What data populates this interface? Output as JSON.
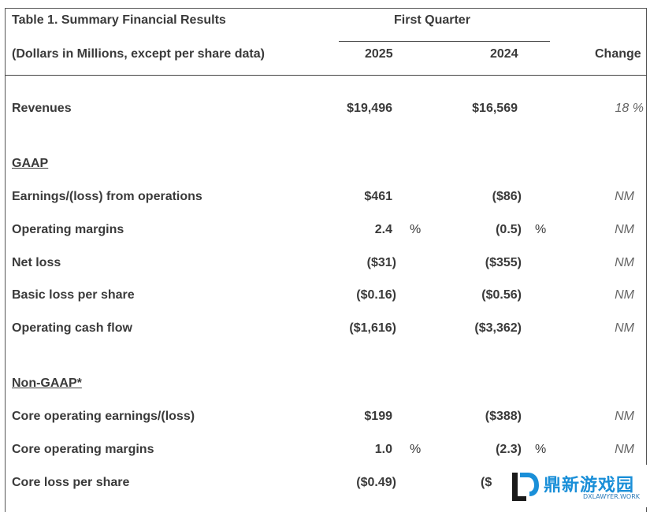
{
  "table": {
    "title": "Table 1. Summary Financial Results",
    "subtitle": "(Dollars in Millions, except per share data)",
    "group_header": "First Quarter",
    "col_2025": "2025",
    "col_2024": "2024",
    "col_change": "Change",
    "rows": [
      {
        "label": "Revenues",
        "v2025": "$19,496",
        "v2024": "$16,569",
        "change": "18 %"
      },
      {
        "label": "GAAP"
      },
      {
        "label": "Earnings/(loss) from operations",
        "v2025": "$461",
        "v2024": "($86)",
        "change": "NM"
      },
      {
        "label": "Operating margins",
        "v2025": "2.4",
        "p2025": "%",
        "v2024": "(0.5)",
        "p2024": "%",
        "change": "NM"
      },
      {
        "label": "Net loss",
        "v2025": "($31)",
        "v2024": "($355)",
        "change": "NM"
      },
      {
        "label": "Basic loss per share",
        "v2025": "($0.16)",
        "v2024": "($0.56)",
        "change": "NM"
      },
      {
        "label": "Operating cash flow",
        "v2025": "($1,616)",
        "v2024": "($3,362)",
        "change": "NM"
      },
      {
        "label": "Non-GAAP*"
      },
      {
        "label": "Core operating earnings/(loss)",
        "v2025": "$199",
        "v2024": "($388)",
        "change": "NM"
      },
      {
        "label": "Core operating margins",
        "v2025": "1.0",
        "p2025": "%",
        "v2024": "(2.3)",
        "p2024": "%",
        "change": "NM"
      },
      {
        "label": "Core loss per share",
        "v2025": "($0.49)",
        "v2024": "($"
      }
    ]
  },
  "watermark": {
    "text": "鼎新游戏园",
    "sub": "DXLAWYER.WORK",
    "color": "#1a8fd8"
  }
}
